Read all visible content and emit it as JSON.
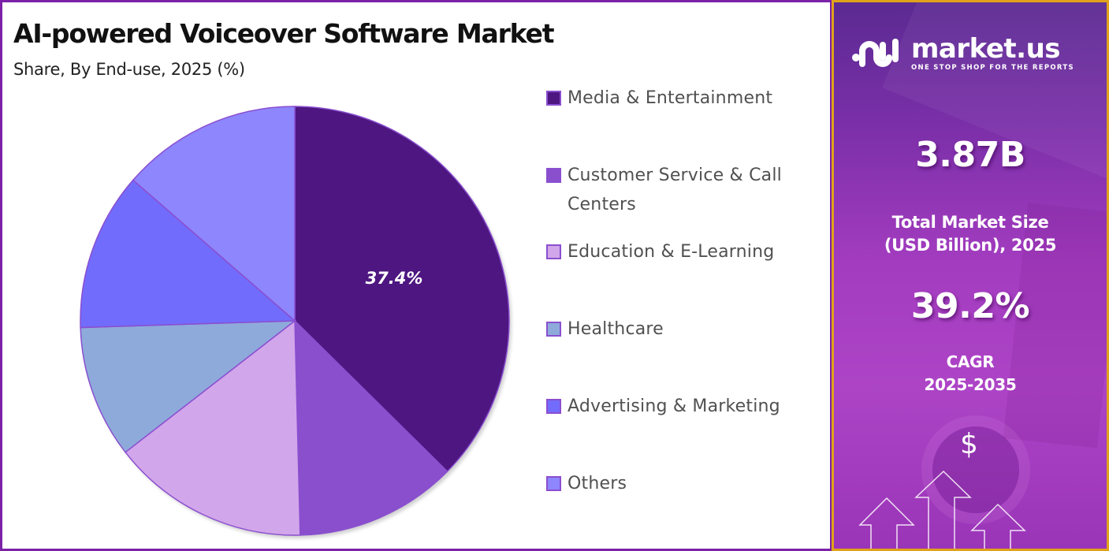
{
  "header": {
    "title": "AI-powered Voiceover Software Market",
    "subtitle": "Share, By End-use, 2025 (%)"
  },
  "legend": {
    "items": [
      {
        "label": "Media & Entertainment",
        "color": "#4e1680"
      },
      {
        "label": "Customer Service & Call Centers",
        "color": "#8a4fcc"
      },
      {
        "label": "Education & E-Learning",
        "color": "#d2a6ea"
      },
      {
        "label": "Healthcare",
        "color": "#8eaadb"
      },
      {
        "label": "Advertising & Marketing",
        "color": "#726cfc"
      },
      {
        "label": "Others",
        "color": "#8d86fc"
      }
    ]
  },
  "pie": {
    "visible_label": "37.4%",
    "stroke_color": "#8a4fd0"
  },
  "chart_data": {
    "type": "pie",
    "title": "AI-powered Voiceover Software Market",
    "subtitle": "Share, By End-use, 2025 (%)",
    "categories": [
      "Media & Entertainment",
      "Customer Service & Call Centers",
      "Education & E-Learning",
      "Healthcare",
      "Advertising & Marketing",
      "Others"
    ],
    "values": [
      37.4,
      12.2,
      14.9,
      10.0,
      11.9,
      13.6
    ],
    "labeled_values": {
      "Media & Entertainment": "37.4%"
    },
    "start_angle": "12 o'clock, clockwise",
    "legend_position": "right"
  },
  "sidebar": {
    "brand_name": "market.us",
    "brand_tagline": "ONE STOP SHOP FOR THE REPORTS",
    "market_size_value": "3.87B",
    "market_size_label_line1": "Total Market Size",
    "market_size_label_line2": "(USD Billion), 2025",
    "cagr_value": "39.2%",
    "cagr_label_line1": "CAGR",
    "cagr_label_line2": "2025-2035",
    "dollar_symbol": "$",
    "accent_border": "#e0a21a",
    "panel_border": "#7b22a8"
  }
}
